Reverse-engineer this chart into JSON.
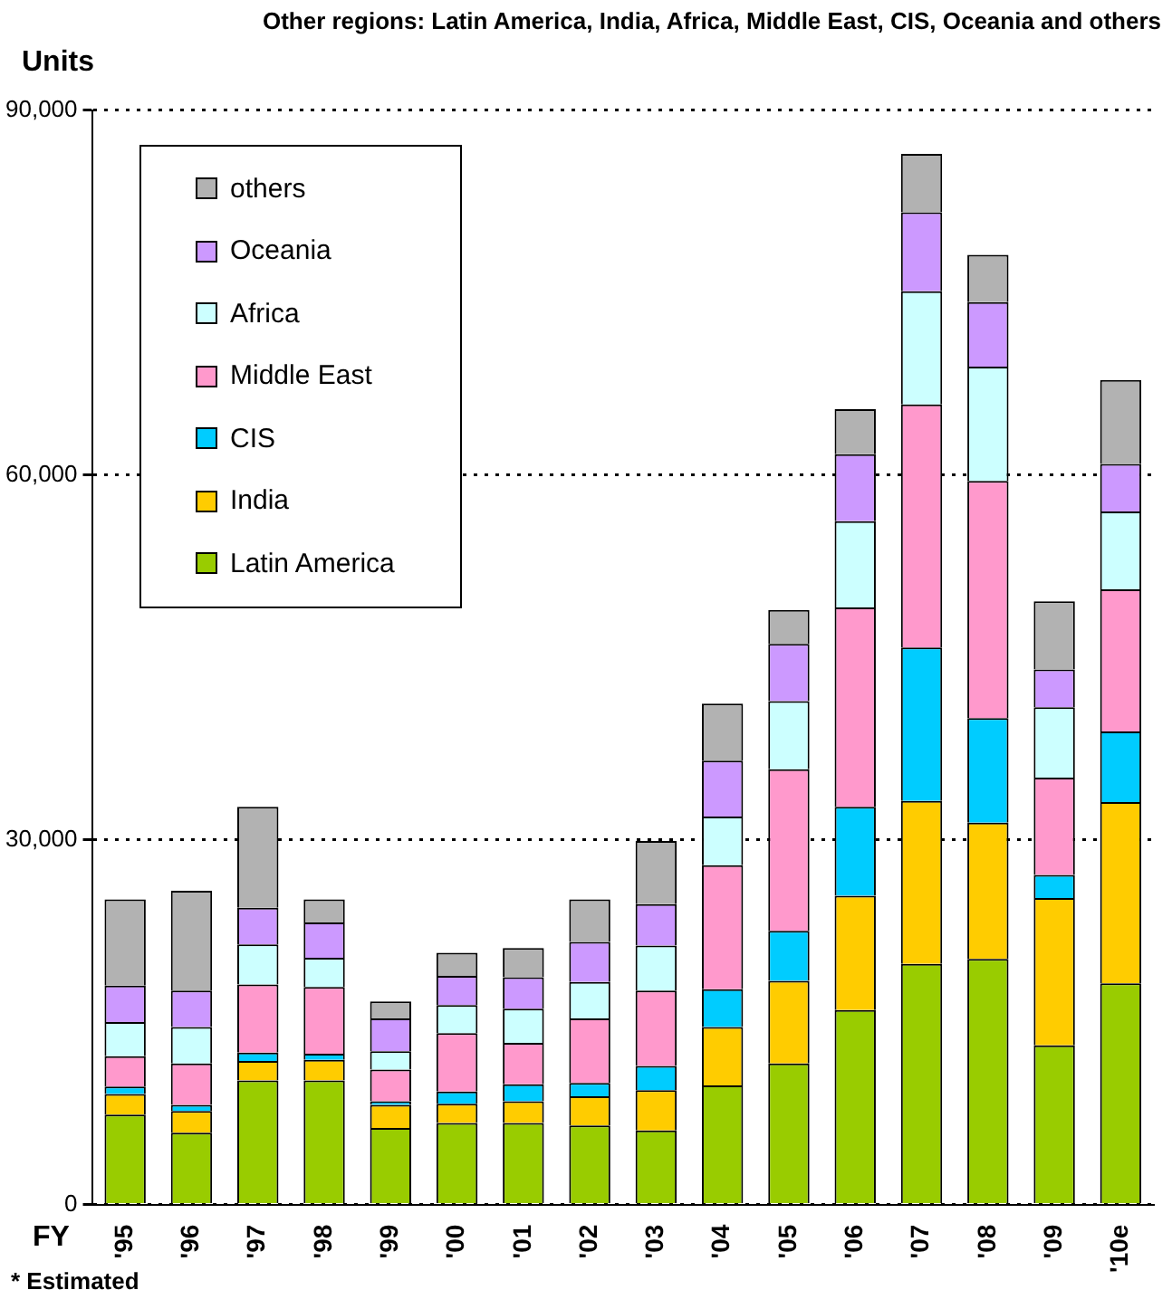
{
  "chart_data": {
    "type": "bar",
    "stacked": true,
    "subtitle": "Other regions: Latin America, India, Africa, Middle East, CIS, Oceania and others",
    "ylabel": "Units",
    "xlabel": "FY",
    "annotations": [
      "* Estimated"
    ],
    "categories": [
      "'95",
      "'96",
      "'97",
      "'98",
      "'99",
      "'00",
      "'01",
      "'02",
      "'03",
      "'04",
      "'05",
      "'06",
      "'07",
      "'08",
      "'09",
      "'10e"
    ],
    "series": [
      {
        "name": "Latin America",
        "color": "#99cc00",
        "values": [
          7400,
          5900,
          10200,
          10200,
          6300,
          6700,
          6700,
          6500,
          6100,
          9800,
          11600,
          16000,
          19800,
          20200,
          13100,
          18200
        ]
      },
      {
        "name": "India",
        "color": "#ffcc00",
        "values": [
          1700,
          1800,
          1600,
          1700,
          1900,
          1600,
          1800,
          2400,
          3300,
          4800,
          6800,
          9400,
          13400,
          11200,
          12100,
          14900
        ]
      },
      {
        "name": "CIS",
        "color": "#00ccff",
        "values": [
          600,
          500,
          700,
          500,
          300,
          1000,
          1400,
          1100,
          2000,
          3100,
          4100,
          7300,
          12600,
          8600,
          1900,
          5800
        ]
      },
      {
        "name": "Middle East",
        "color": "#ff99cc",
        "values": [
          2500,
          3400,
          5600,
          5500,
          2600,
          4800,
          3400,
          5300,
          6200,
          10200,
          13300,
          16400,
          20000,
          19500,
          8000,
          11700
        ]
      },
      {
        "name": "Africa",
        "color": "#ccffff",
        "values": [
          2800,
          3000,
          3300,
          2400,
          1500,
          2300,
          2800,
          3000,
          3700,
          4000,
          5600,
          7100,
          9300,
          9400,
          5800,
          6400
        ]
      },
      {
        "name": "Oceania",
        "color": "#cc99ff",
        "values": [
          3000,
          3000,
          3000,
          2900,
          2700,
          2400,
          2600,
          3300,
          3400,
          4600,
          4700,
          5500,
          6500,
          5300,
          3100,
          3900
        ]
      },
      {
        "name": "others",
        "color": "#b2b2b2",
        "values": [
          7100,
          8200,
          8300,
          1900,
          1400,
          1900,
          2400,
          3500,
          5200,
          4700,
          2800,
          3700,
          4800,
          3900,
          5600,
          6900
        ]
      }
    ],
    "ylim": [
      0,
      90000
    ],
    "yticks": [
      0,
      {
        "value": 30000,
        "label": "30,000"
      },
      {
        "value": 60000,
        "label": "60,000"
      },
      {
        "value": 90000,
        "label": "90,000"
      }
    ],
    "grid": "y",
    "legend": "top left"
  }
}
